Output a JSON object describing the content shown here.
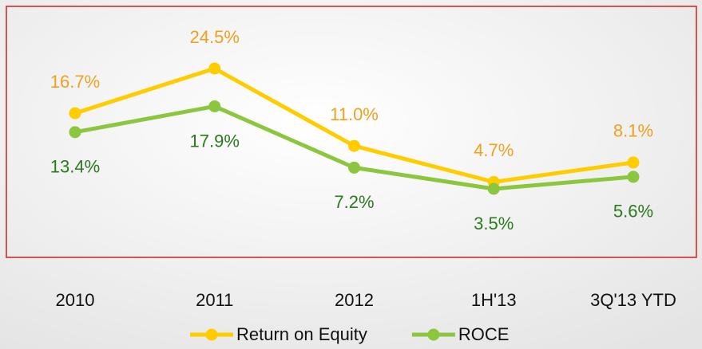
{
  "chart_data": {
    "type": "line",
    "categories": [
      "2010",
      "2011",
      "2012",
      "1H'13",
      "3Q'13 YTD"
    ],
    "series": [
      {
        "name": "Return on Equity",
        "color": "#ffcc00",
        "label_color": "#f0a020",
        "values": [
          16.7,
          24.5,
          11.0,
          4.7,
          8.1
        ],
        "value_labels": [
          "16.7%",
          "24.5%",
          "11.0%",
          "4.7%",
          "8.1%"
        ]
      },
      {
        "name": "ROCE",
        "color": "#8cc63f",
        "label_color": "#2a7a1e",
        "values": [
          13.4,
          17.9,
          7.2,
          3.5,
          5.6
        ],
        "value_labels": [
          "13.4%",
          "17.9%",
          "7.2%",
          "3.5%",
          "5.6%"
        ]
      }
    ],
    "legend": "bottom"
  }
}
